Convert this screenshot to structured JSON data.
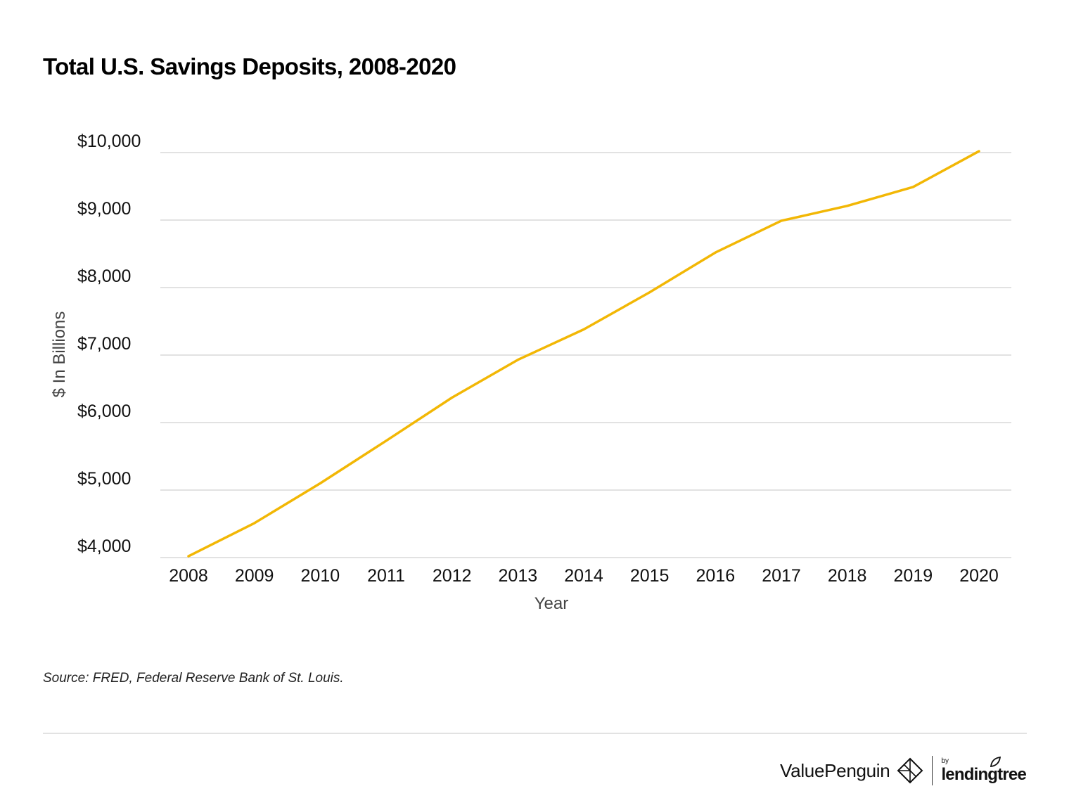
{
  "title": "Total U.S. Savings Deposits, 2008-2020",
  "source": "Source: FRED, Federal Reserve Bank of St. Louis.",
  "brand": {
    "valuepenguin": "ValuePenguin",
    "by": "by",
    "lendingtree": "lendingtree"
  },
  "colors": {
    "line": "#F2B705",
    "grid": "#e2e2e2"
  },
  "chart_data": {
    "type": "line",
    "title": "Total U.S. Savings Deposits, 2008-2020",
    "xlabel": "Year",
    "ylabel": "$ In Billions",
    "ylim": [
      4000,
      10000
    ],
    "yticks": [
      4000,
      5000,
      6000,
      7000,
      8000,
      9000,
      10000
    ],
    "ytick_labels": [
      "$4,000",
      "$5,000",
      "$6,000",
      "$7,000",
      "$8,000",
      "$9,000",
      "$10,000"
    ],
    "grid": true,
    "x": [
      "2008",
      "2009",
      "2010",
      "2011",
      "2012",
      "2013",
      "2014",
      "2015",
      "2016",
      "2017",
      "2018",
      "2019",
      "2020"
    ],
    "series": [
      {
        "name": "Total U.S. Savings Deposits",
        "values": [
          4020,
          4510,
          5100,
          5730,
          6370,
          6930,
          7380,
          7930,
          8520,
          8990,
          9210,
          9490,
          10020
        ]
      }
    ]
  }
}
